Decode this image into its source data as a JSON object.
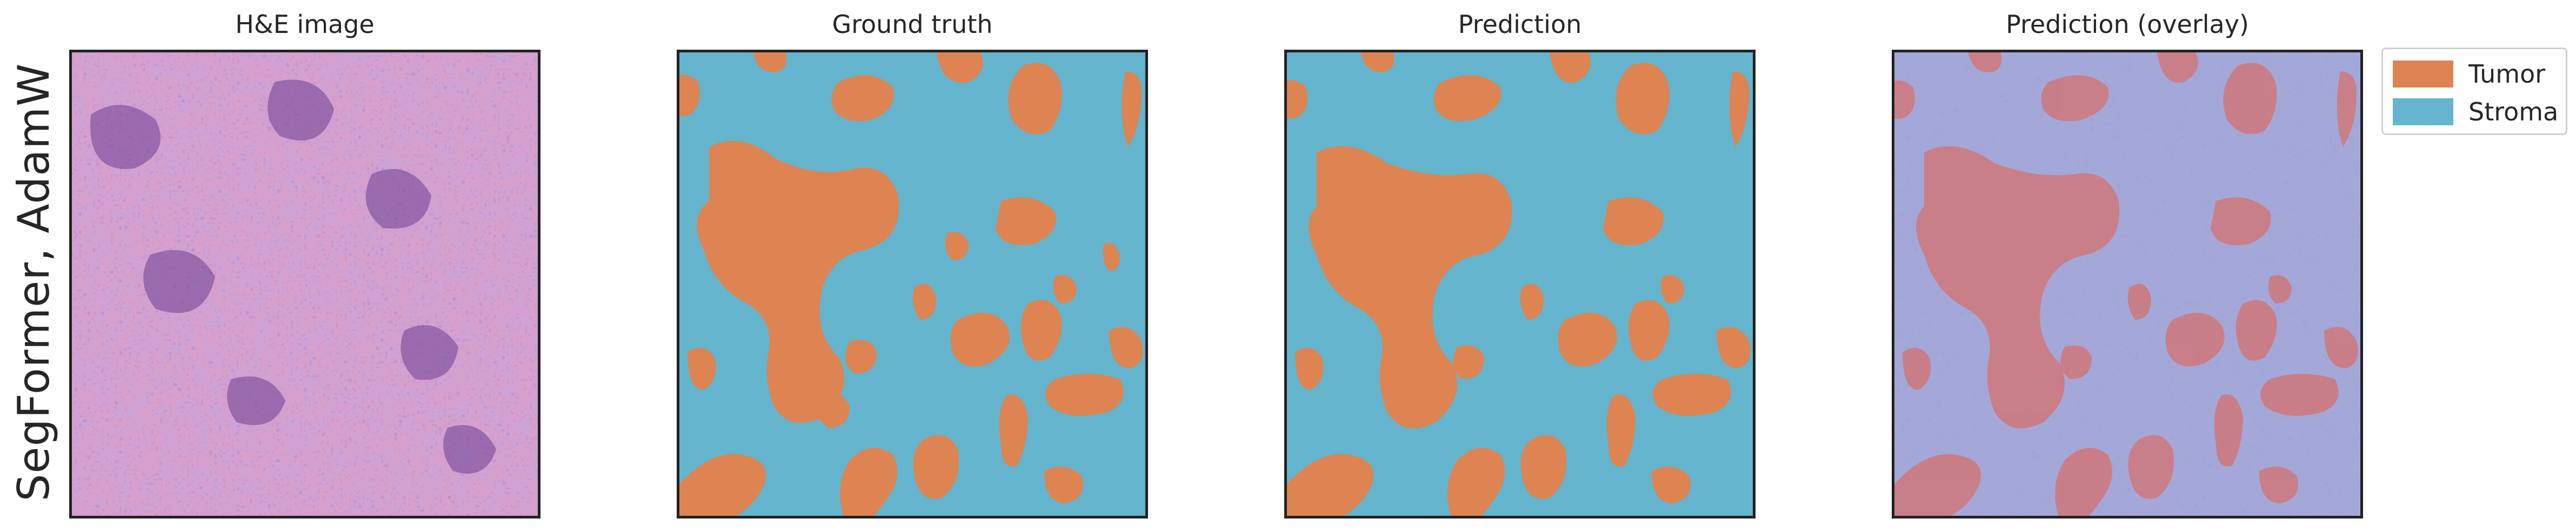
{
  "row_label": "SegFormer, AdamW",
  "panels": [
    {
      "title": "H&E image"
    },
    {
      "title": "Ground truth"
    },
    {
      "title": "Prediction"
    },
    {
      "title": "Prediction (overlay)"
    }
  ],
  "legend": [
    {
      "label": "Tumor",
      "color": "#DD8452"
    },
    {
      "label": "Stroma",
      "color": "#64B5CD"
    }
  ],
  "colors": {
    "tumor": "#DD8452",
    "stroma": "#64B5CD",
    "he_background": "#D69FCC",
    "he_nuclei": "#7A4C9E",
    "overlay_background": "#A4A8D8",
    "overlay_tumor": "#D27676"
  }
}
